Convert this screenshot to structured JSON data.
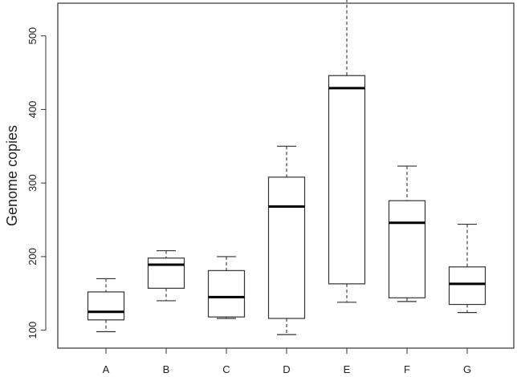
{
  "chart_data": {
    "type": "boxplot",
    "ylabel": "Genome copies",
    "xlabel": "",
    "title": "",
    "ylim": [
      80,
      540
    ],
    "yticks": [
      100,
      200,
      300,
      400,
      500
    ],
    "categories": [
      "A",
      "B",
      "C",
      "D",
      "E",
      "F",
      "G"
    ],
    "boxes": [
      {
        "name": "A",
        "whisker_low": 98,
        "q1": 114,
        "median": 125,
        "q3": 152,
        "whisker_high": 170
      },
      {
        "name": "B",
        "whisker_low": 140,
        "q1": 157,
        "median": 189,
        "q3": 198,
        "whisker_high": 208
      },
      {
        "name": "C",
        "whisker_low": 116,
        "q1": 118,
        "median": 145,
        "q3": 181,
        "whisker_high": 200
      },
      {
        "name": "D",
        "whisker_low": 94,
        "q1": 116,
        "median": 268,
        "q3": 308,
        "whisker_high": 350
      },
      {
        "name": "E",
        "whisker_low": 138,
        "q1": 163,
        "median": 429,
        "q3": 446,
        "whisker_high": 550
      },
      {
        "name": "F",
        "whisker_low": 139,
        "q1": 144,
        "median": 246,
        "q3": 276,
        "whisker_high": 323
      },
      {
        "name": "G",
        "whisker_low": 124,
        "q1": 135,
        "median": 163,
        "q3": 186,
        "whisker_high": 244
      }
    ],
    "grid": false,
    "legend": "none"
  }
}
